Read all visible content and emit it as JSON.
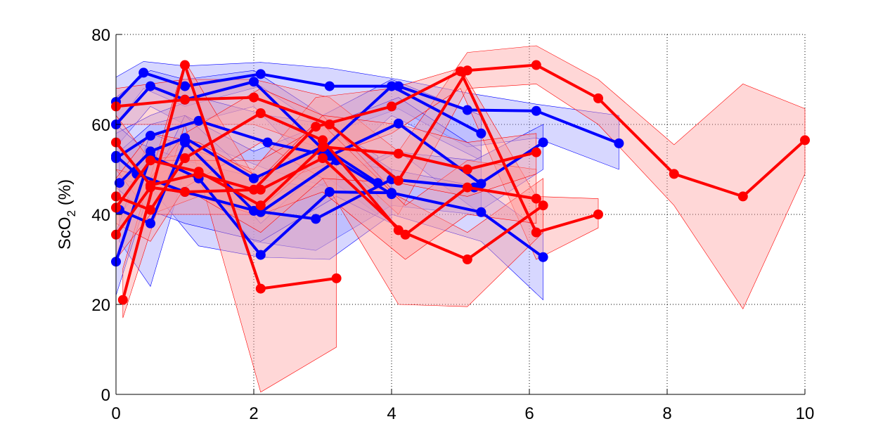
{
  "chart_data": {
    "type": "line",
    "title": "",
    "xlabel": "",
    "ylabel": "ScO",
    "ylabel_subscript": "2",
    "ylabel_suffix": " (%)",
    "xlim": [
      0,
      10
    ],
    "ylim": [
      0,
      80
    ],
    "x_ticks": [
      0,
      2,
      4,
      6,
      8,
      10
    ],
    "y_ticks": [
      0,
      20,
      40,
      60,
      80
    ],
    "x_tick_labels": [
      "0",
      "2",
      "4",
      "6",
      "8",
      "10"
    ],
    "y_tick_labels": [
      "0",
      "20",
      "40",
      "60",
      "80"
    ],
    "grid": true,
    "legend": "none",
    "colors": {
      "blue_line": "#0000ff",
      "blue_band": "#9a9aff",
      "red_line": "#ff0000",
      "red_band": "#ff9a9a"
    },
    "series": [
      {
        "color": "blue",
        "x": [
          0.0,
          0.4,
          1.0,
          2.1,
          3.1,
          4.1,
          5.1,
          6.1,
          7.3
        ],
        "y": [
          65.0,
          71.5,
          68.5,
          71.2,
          68.5,
          68.5,
          63.2,
          63.0,
          55.8
        ],
        "upper": [
          70.5,
          74.0,
          73.0,
          73.8,
          72.5,
          70.0,
          67.0,
          64.5,
          62.0
        ],
        "lower": [
          60.0,
          68.0,
          64.0,
          68.5,
          58.0,
          63.5,
          55.0,
          57.0,
          50.0
        ]
      },
      {
        "color": "blue",
        "x": [
          0.0,
          0.5,
          1.0,
          2.0,
          3.0,
          4.0,
          5.3
        ],
        "y": [
          60.0,
          68.5,
          65.5,
          69.5,
          54.5,
          68.5,
          58.0
        ],
        "upper": [
          66.0,
          72.0,
          70.0,
          72.0,
          62.0,
          70.0,
          62.0
        ],
        "lower": [
          55.0,
          64.0,
          60.0,
          64.0,
          48.0,
          62.0,
          52.0
        ]
      },
      {
        "color": "blue",
        "x": [
          0.0,
          0.5,
          1.2,
          2.2,
          3.1,
          4.1,
          5.3
        ],
        "y": [
          52.5,
          57.5,
          60.8,
          56.0,
          53.0,
          60.2,
          46.8
        ],
        "upper": [
          58.0,
          62.0,
          66.0,
          62.0,
          60.0,
          66.0,
          54.0
        ],
        "lower": [
          46.0,
          52.0,
          56.0,
          50.0,
          46.0,
          54.0,
          40.0
        ]
      },
      {
        "color": "blue",
        "x": [
          0.05,
          0.5,
          1.0,
          2.0,
          3.0,
          3.8
        ],
        "y": [
          47.0,
          54.0,
          57.0,
          48.0,
          55.0,
          47.0
        ],
        "upper": [
          54.0,
          60.0,
          62.0,
          54.0,
          60.0,
          53.0
        ],
        "lower": [
          40.0,
          48.0,
          52.0,
          42.0,
          49.0,
          40.0
        ]
      },
      {
        "color": "blue",
        "x": [
          0.05,
          0.5,
          1.0,
          2.0,
          2.9,
          4.0,
          5.2,
          6.2
        ],
        "y": [
          41.0,
          38.0,
          56.0,
          40.8,
          39.0,
          47.8,
          46.0,
          56.0
        ],
        "upper": [
          48.0,
          46.0,
          62.0,
          48.0,
          46.0,
          54.0,
          52.0,
          60.0
        ],
        "lower": [
          34.0,
          24.0,
          50.0,
          34.0,
          32.0,
          42.0,
          40.0,
          50.0
        ]
      },
      {
        "color": "blue",
        "x": [
          0.0,
          0.5,
          1.2,
          2.1,
          3.1,
          4.0,
          5.3,
          6.2
        ],
        "y": [
          29.5,
          53.0,
          48.0,
          31.0,
          45.0,
          44.8,
          40.5,
          30.5
        ],
        "upper": [
          36.0,
          58.0,
          54.0,
          38.0,
          52.0,
          50.0,
          46.0,
          36.0
        ],
        "lower": [
          22.0,
          46.0,
          33.0,
          30.5,
          30.0,
          40.0,
          34.0,
          21.0
        ]
      },
      {
        "color": "blue",
        "x": [
          0.0,
          0.3,
          1.0,
          2.1,
          3.2,
          4.0
        ],
        "y": [
          53.0,
          49.0,
          45.0,
          40.5,
          52.0,
          44.5
        ],
        "upper": [
          60.0,
          56.0,
          52.0,
          48.0,
          58.0,
          50.0
        ],
        "lower": [
          46.0,
          42.0,
          38.0,
          34.0,
          44.0,
          38.0
        ]
      },
      {
        "color": "red",
        "x": [
          0.0,
          1.0,
          2.0,
          3.1,
          4.1,
          5.1,
          6.1,
          7.0,
          8.1,
          9.1,
          10.0
        ],
        "y": [
          64.0,
          65.5,
          66.0,
          60.0,
          47.5,
          72.0,
          73.2,
          65.8,
          49.0,
          44.0,
          56.5
        ],
        "upper": [
          68.0,
          70.0,
          70.0,
          66.0,
          54.0,
          76.0,
          77.5,
          70.0,
          55.5,
          69.0,
          63.5
        ],
        "lower": [
          60.0,
          60.0,
          60.0,
          54.0,
          40.0,
          68.0,
          69.0,
          60.0,
          42.0,
          19.0,
          49.0
        ]
      },
      {
        "color": "red",
        "x": [
          0.1,
          1.0,
          2.1,
          3.2
        ],
        "y": [
          21.0,
          73.2,
          23.5,
          25.8
        ],
        "upper": [
          28.0,
          74.0,
          46.0,
          52.0
        ],
        "lower": [
          17.0,
          60.0,
          0.5,
          10.5
        ]
      },
      {
        "color": "red",
        "x": [
          0.0,
          0.5,
          1.2,
          2.0,
          2.9,
          4.0,
          5.0,
          6.1,
          7.0
        ],
        "y": [
          56.0,
          46.5,
          49.0,
          45.5,
          59.5,
          64.0,
          71.8,
          36.0,
          40.0
        ],
        "upper": [
          62.0,
          52.0,
          54.0,
          50.0,
          66.0,
          68.0,
          72.5,
          44.0,
          43.5
        ],
        "lower": [
          50.0,
          40.0,
          44.0,
          40.0,
          52.0,
          58.0,
          68.0,
          30.0,
          37.0
        ]
      },
      {
        "color": "red",
        "x": [
          0.0,
          0.5,
          1.0,
          2.1,
          3.0,
          4.1,
          5.1,
          6.2
        ],
        "y": [
          44.0,
          41.0,
          52.5,
          62.5,
          56.5,
          36.5,
          30.0,
          42.0
        ],
        "upper": [
          50.0,
          48.0,
          58.0,
          68.0,
          62.0,
          44.0,
          36.0,
          48.0
        ],
        "lower": [
          38.0,
          34.0,
          46.0,
          56.0,
          48.0,
          20.0,
          19.5,
          36.0
        ]
      },
      {
        "color": "red",
        "x": [
          0.0,
          0.5,
          1.0,
          2.1,
          3.0,
          4.2,
          5.1,
          6.1
        ],
        "y": [
          35.5,
          46.0,
          45.0,
          45.5,
          52.5,
          35.5,
          46.0,
          43.5
        ],
        "upper": [
          42.0,
          52.0,
          52.0,
          52.0,
          60.0,
          42.0,
          52.0,
          50.0
        ],
        "lower": [
          30.0,
          40.0,
          40.0,
          40.0,
          45.0,
          30.0,
          40.0,
          38.0
        ]
      },
      {
        "color": "red",
        "x": [
          0.0,
          0.5,
          1.2,
          2.1,
          3.0,
          4.1,
          5.1,
          6.1
        ],
        "y": [
          41.5,
          52.0,
          49.5,
          42.0,
          55.0,
          53.5,
          50.0,
          53.8
        ],
        "upper": [
          48.0,
          58.0,
          56.0,
          48.0,
          62.0,
          60.0,
          56.0,
          58.0
        ],
        "lower": [
          35.0,
          46.0,
          44.0,
          36.0,
          48.0,
          47.0,
          44.0,
          49.0
        ]
      }
    ]
  }
}
